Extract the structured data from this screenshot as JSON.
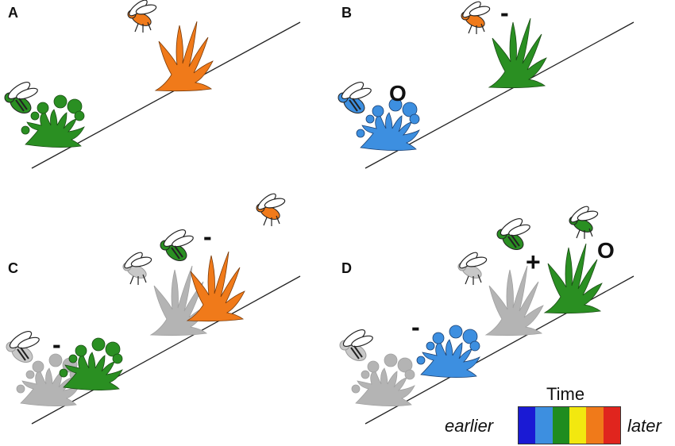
{
  "panels": {
    "a": {
      "label": "A"
    },
    "b": {
      "label": "B",
      "sign_bee": "O",
      "sign_fly": "-"
    },
    "c": {
      "label": "C",
      "sign_left": "-",
      "sign_mid": "-"
    },
    "d": {
      "label": "D",
      "sign_left": "-",
      "sign_mid": "+",
      "sign_right": "O"
    }
  },
  "legend": {
    "title": "Time",
    "earlier": "earlier",
    "later": "later",
    "colors": [
      "#1a1ad4",
      "#3d8fe0",
      "#1f8c1f",
      "#f2e80f",
      "#f07a1a",
      "#e0251e"
    ]
  },
  "colors": {
    "orange": "#f07a1a",
    "green": "#2a8f22",
    "blue": "#3d8fe0",
    "grey": "#b4b4b4"
  }
}
